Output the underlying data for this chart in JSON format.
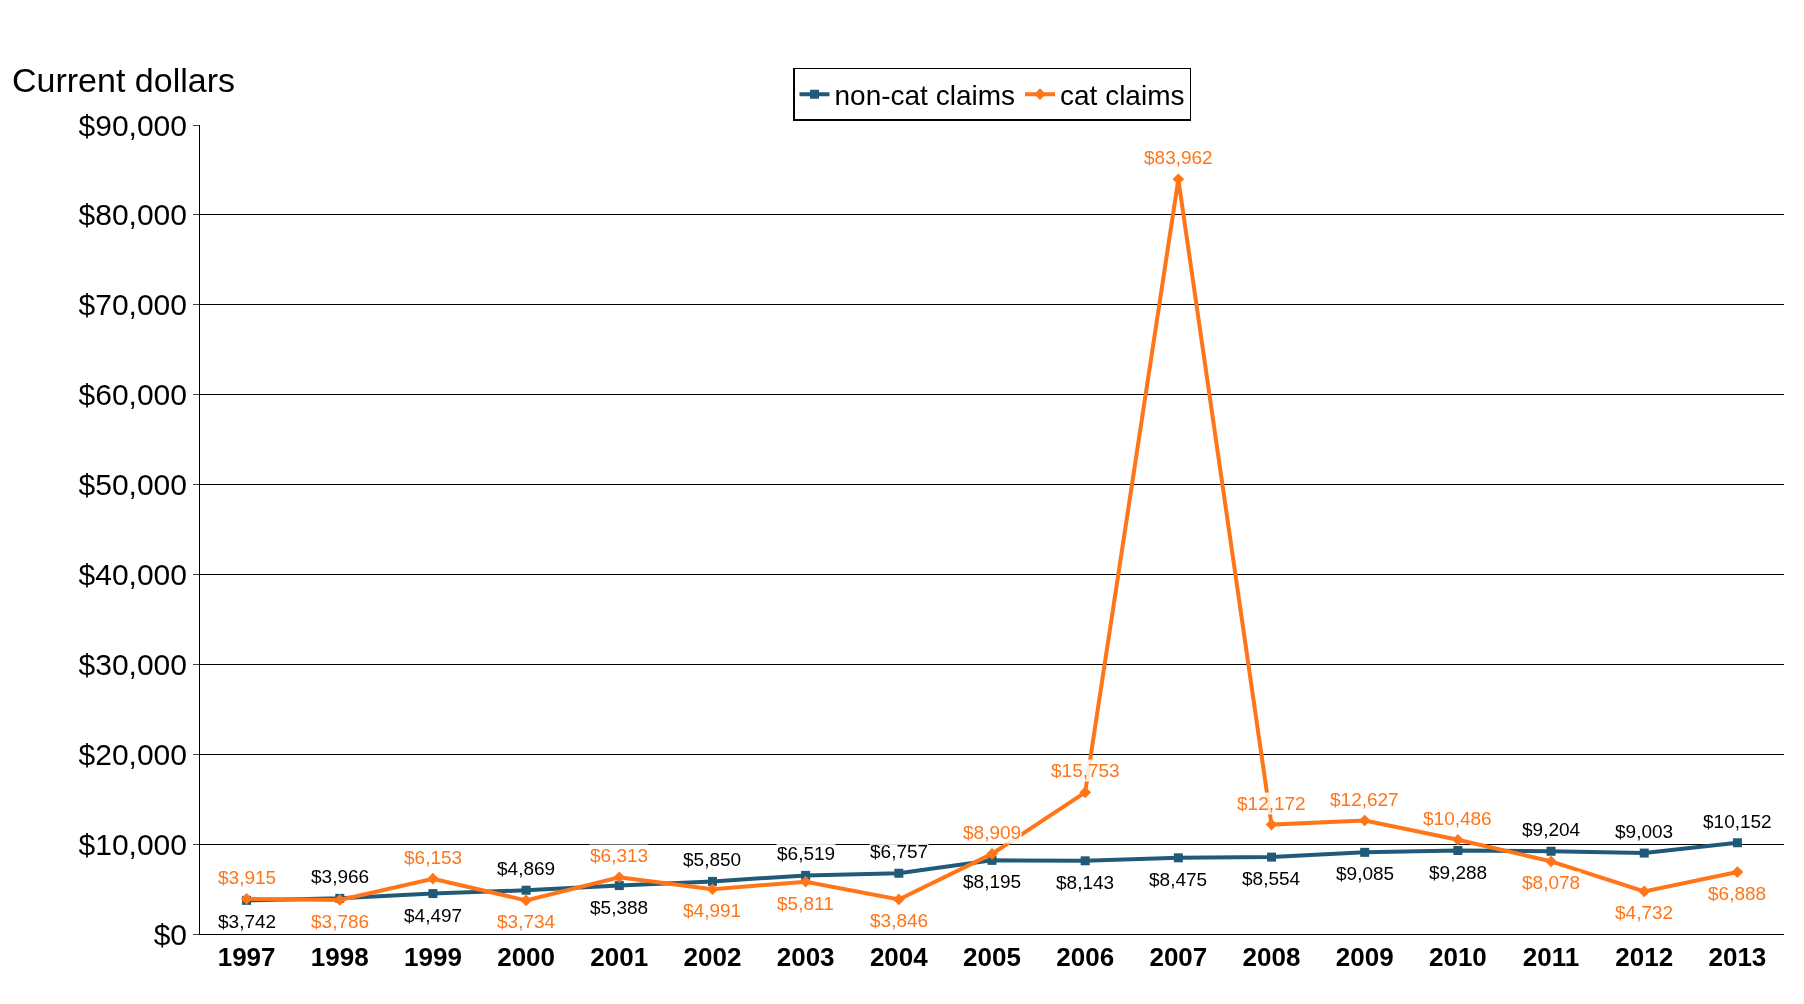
{
  "chart_data": {
    "type": "line",
    "ylabel": "Current dollars",
    "categories": [
      "1997",
      "1998",
      "1999",
      "2000",
      "2001",
      "2002",
      "2003",
      "2004",
      "2005",
      "2006",
      "2007",
      "2008",
      "2009",
      "2010",
      "2011",
      "2012",
      "2013"
    ],
    "series": [
      {
        "name": "non-cat claims",
        "color": "#215a78",
        "marker": "square",
        "values": [
          3742,
          3966,
          4497,
          4869,
          5388,
          5850,
          6519,
          6757,
          8195,
          8143,
          8475,
          8554,
          9085,
          9288,
          9204,
          9003,
          10152
        ],
        "value_labels": [
          "$3,742",
          "$3,966",
          "$4,497",
          "$4,869",
          "$5,388",
          "$5,850",
          "$6,519",
          "$6,757",
          "$8,195",
          "$8,143",
          "$8,475",
          "$8,554",
          "$9,085",
          "$9,288",
          "$9,204",
          "$9,003",
          "$10,152"
        ]
      },
      {
        "name": "cat claims",
        "color": "#ff7518",
        "marker": "diamond",
        "values": [
          3915,
          3786,
          6153,
          3734,
          6313,
          4991,
          5811,
          3846,
          8909,
          15753,
          83962,
          12172,
          12627,
          10486,
          8078,
          4732,
          6888
        ],
        "value_labels": [
          "$3,915",
          "$3,786",
          "$6,153",
          "$3,734",
          "$6,313",
          "$4,991",
          "$5,811",
          "$3,846",
          "$8,909",
          "$15,753",
          "$83,962",
          "$12,172",
          "$12,627",
          "$10,486",
          "$8,078",
          "$4,732",
          "$6,888"
        ]
      }
    ],
    "ylim": [
      0,
      90000
    ],
    "yticks": [
      {
        "value": 0,
        "label": "$0"
      },
      {
        "value": 10000,
        "label": "$10,000"
      },
      {
        "value": 20000,
        "label": "$20,000"
      },
      {
        "value": 30000,
        "label": "$30,000"
      },
      {
        "value": 40000,
        "label": "$40,000"
      },
      {
        "value": 50000,
        "label": "$50,000"
      },
      {
        "value": 60000,
        "label": "$60,000"
      },
      {
        "value": 70000,
        "label": "$70,000"
      },
      {
        "value": 80000,
        "label": "$80,000"
      },
      {
        "value": 90000,
        "label": "$90,000"
      }
    ],
    "grid": "y",
    "legend": "top",
    "line_style": "solid"
  }
}
